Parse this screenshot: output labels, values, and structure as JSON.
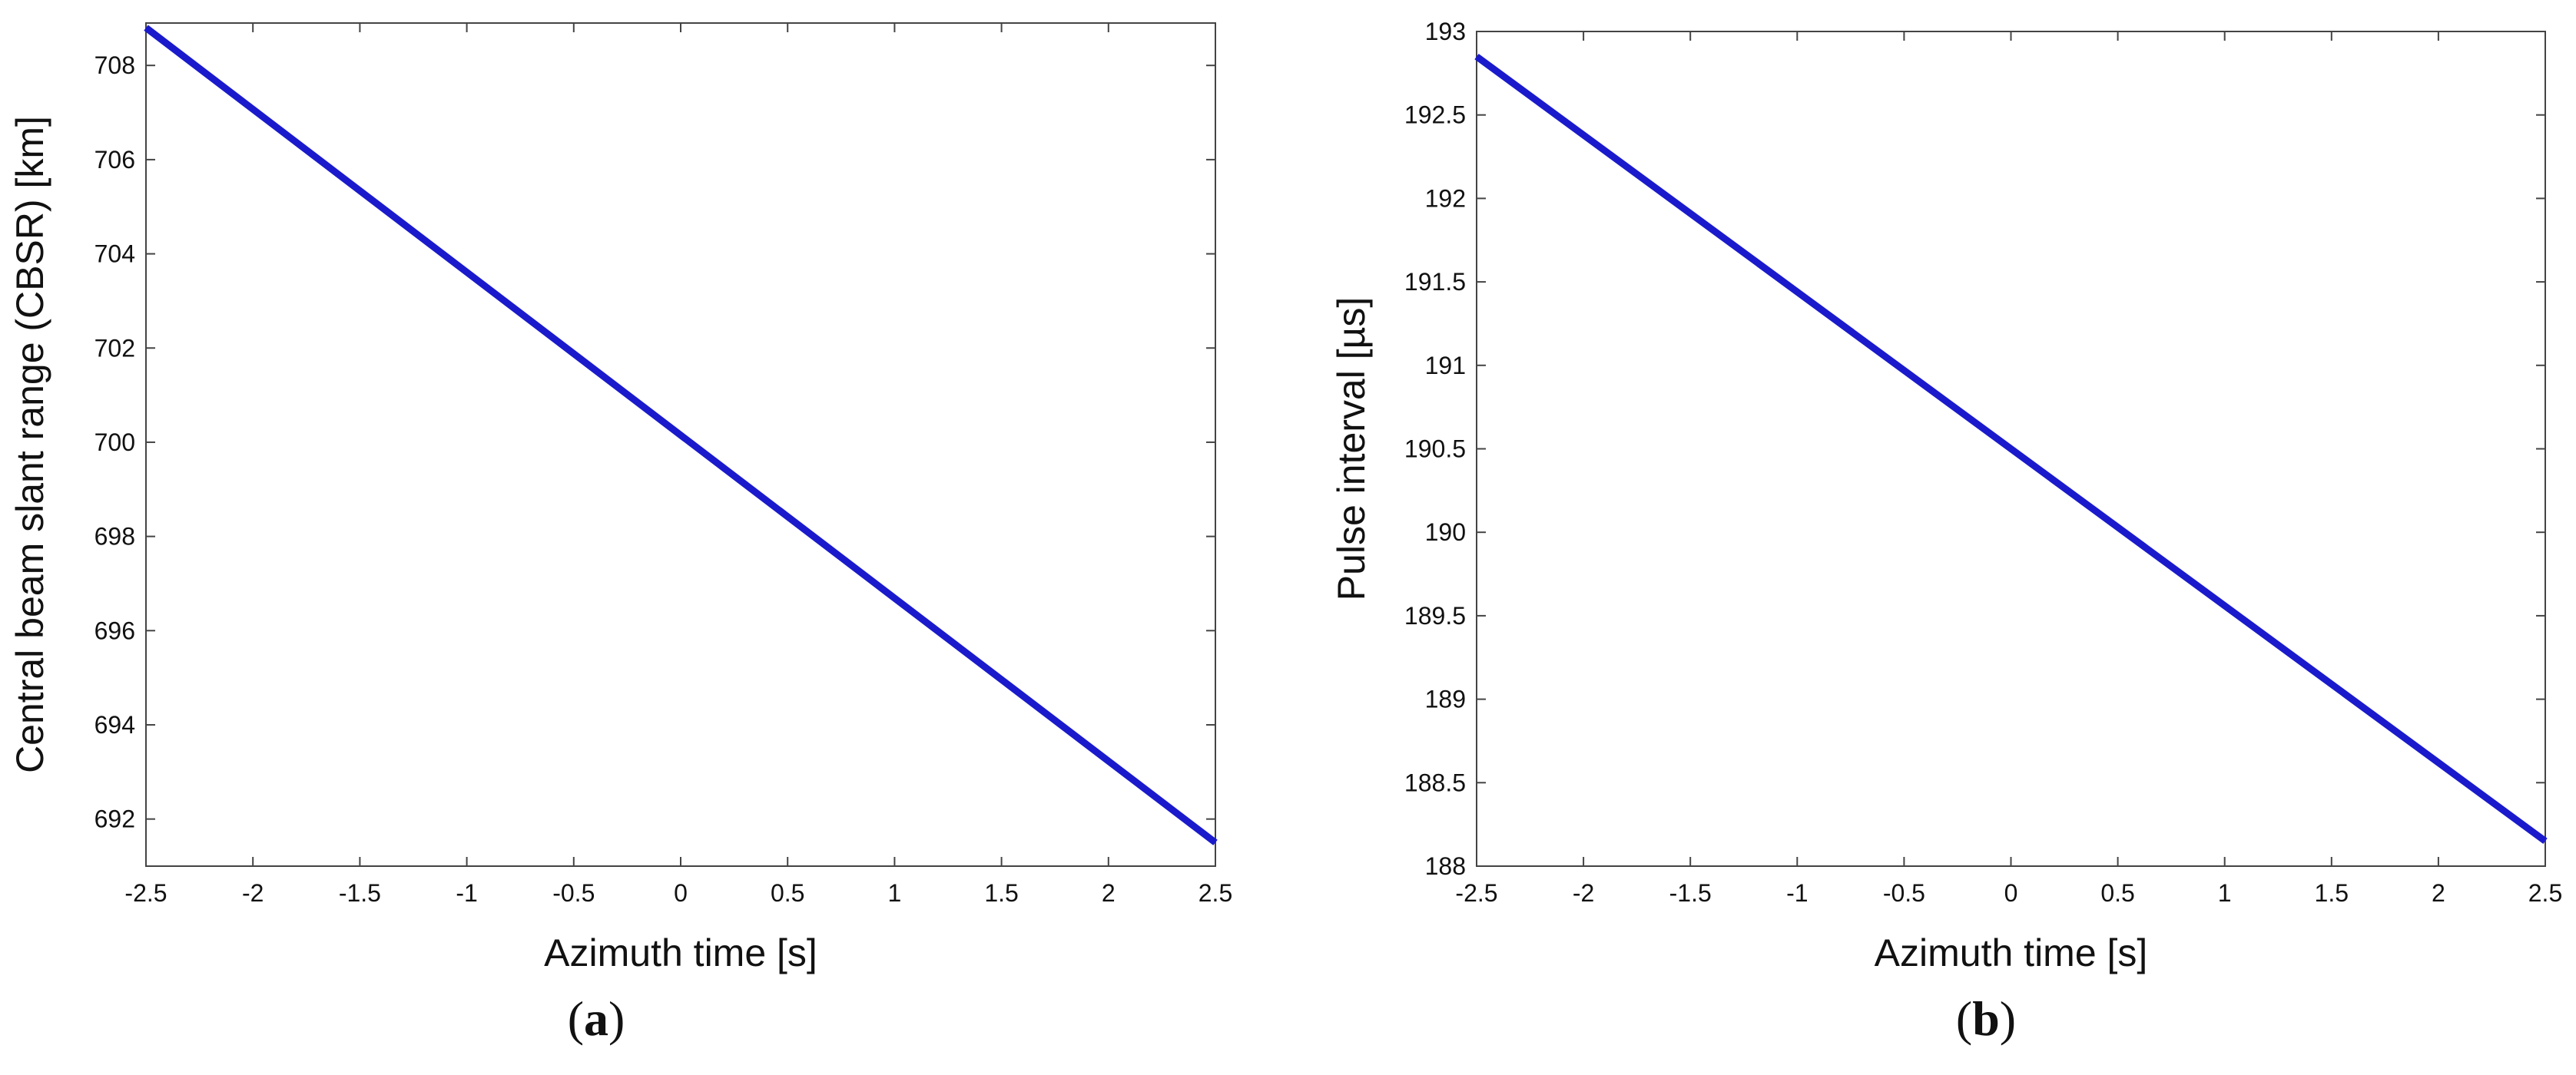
{
  "chart_data": [
    {
      "type": "line",
      "panel_label": "a",
      "xlabel": "Azimuth time [s]",
      "ylabel": "Central beam slant range (CBSR) [km]",
      "xlim": [
        -2.5,
        2.5
      ],
      "ylim": [
        691,
        708.9
      ],
      "xticks": [
        -2.5,
        -2,
        -1.5,
        -1,
        -0.5,
        0,
        0.5,
        1,
        1.5,
        2,
        2.5
      ],
      "xtick_labels": [
        "-2.5",
        "-2",
        "-1.5",
        "-1",
        "-0.5",
        "0",
        "0.5",
        "1",
        "1.5",
        "2",
        "2.5"
      ],
      "yticks": [
        692,
        694,
        696,
        698,
        700,
        702,
        704,
        706,
        708
      ],
      "ytick_labels": [
        "692",
        "694",
        "696",
        "698",
        "700",
        "702",
        "704",
        "706",
        "708"
      ],
      "grid": false,
      "line_color": "#1a1acc",
      "series": [
        {
          "x": [
            -2.5,
            2.5
          ],
          "y": [
            708.8,
            691.5
          ]
        }
      ]
    },
    {
      "type": "line",
      "panel_label": "b",
      "xlabel": "Azimuth time [s]",
      "ylabel": "Pulse interval [µs]",
      "xlim": [
        -2.5,
        2.5
      ],
      "ylim": [
        188,
        193
      ],
      "xticks": [
        -2.5,
        -2,
        -1.5,
        -1,
        -0.5,
        0,
        0.5,
        1,
        1.5,
        2,
        2.5
      ],
      "xtick_labels": [
        "-2.5",
        "-2",
        "-1.5",
        "-1",
        "-0.5",
        "0",
        "0.5",
        "1",
        "1.5",
        "2",
        "2.5"
      ],
      "yticks": [
        188,
        188.5,
        189,
        189.5,
        190,
        190.5,
        191,
        191.5,
        192,
        192.5,
        193
      ],
      "ytick_labels": [
        "188",
        "188.5",
        "189",
        "189.5",
        "190",
        "190.5",
        "191",
        "191.5",
        "192",
        "192.5",
        "193"
      ],
      "grid": false,
      "line_color": "#1a1acc",
      "series": [
        {
          "x": [
            -2.5,
            2.5
          ],
          "y": [
            192.85,
            188.15
          ]
        }
      ]
    }
  ],
  "captions": [
    {
      "open": "(",
      "letter": "a",
      "close": ")"
    },
    {
      "open": "(",
      "letter": "b",
      "close": ")"
    }
  ]
}
